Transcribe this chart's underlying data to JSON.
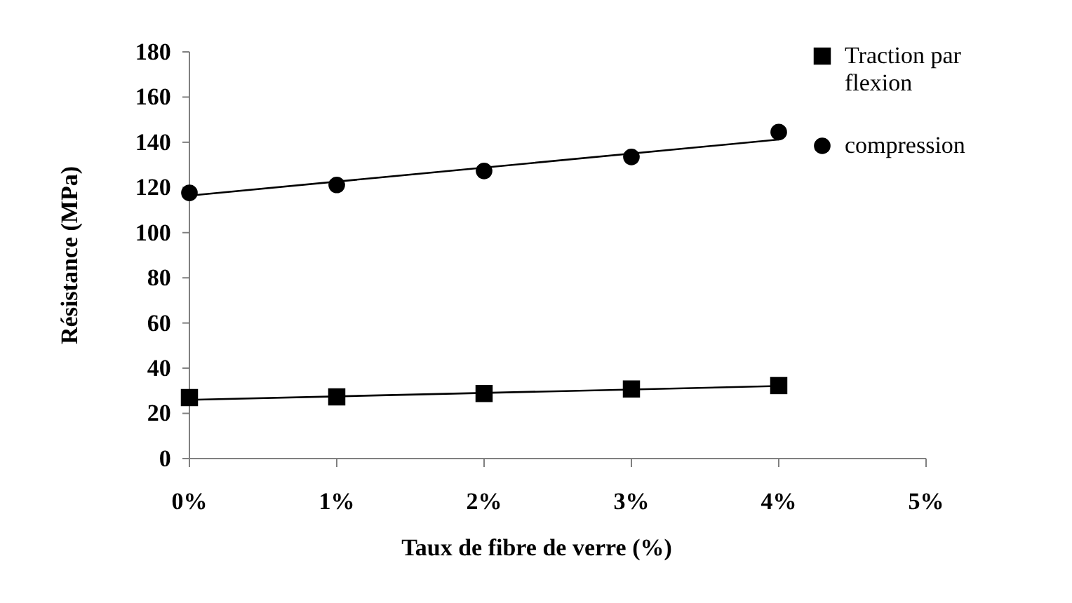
{
  "chart_data": {
    "type": "scatter",
    "xlabel": "Taux de fibre de verre (%)",
    "ylabel": "Résistance (MPa)",
    "xlim": [
      0,
      5
    ],
    "xticks": [
      {
        "value": 0,
        "label": "0%"
      },
      {
        "value": 1,
        "label": "1%"
      },
      {
        "value": 2,
        "label": "2%"
      },
      {
        "value": 3,
        "label": "3%"
      },
      {
        "value": 4,
        "label": "4%"
      },
      {
        "value": 5,
        "label": "5%"
      }
    ],
    "ylim": [
      0,
      180
    ],
    "yticks": [
      0,
      20,
      40,
      60,
      80,
      100,
      120,
      140,
      160,
      180
    ],
    "grid": false,
    "legend": "top right",
    "series": [
      {
        "name": "Traction par flexion",
        "marker": "square",
        "color": "#000000",
        "x": [
          0,
          1,
          2,
          3,
          4
        ],
        "values": [
          27,
          27.3,
          28.8,
          30.8,
          32.3
        ]
      },
      {
        "name": "compression",
        "marker": "circle",
        "color": "#000000",
        "x": [
          0,
          1,
          2,
          3,
          4
        ],
        "values": [
          117.6,
          121.1,
          127.3,
          133.5,
          144.5
        ]
      },
      {
        "type": "line",
        "color": "#000000",
        "x": [
          0,
          4
        ],
        "values": [
          26,
          32.1
        ]
      },
      {
        "type": "line",
        "color": "#000000",
        "x": [
          0,
          4
        ],
        "values": [
          116.4,
          141.2
        ]
      }
    ]
  }
}
